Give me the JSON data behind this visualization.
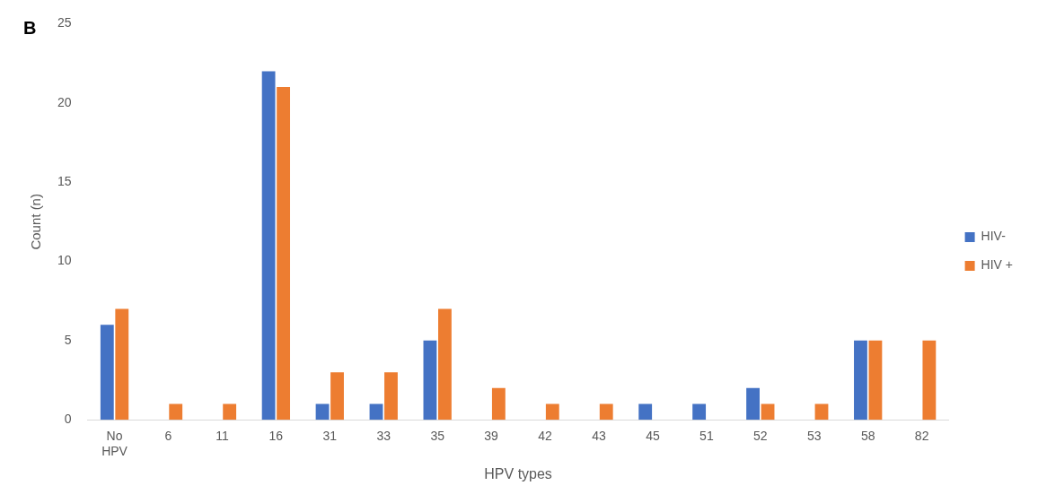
{
  "chart_data": {
    "type": "bar",
    "categories": [
      "No HPV",
      "6",
      "11",
      "16",
      "31",
      "33",
      "35",
      "39",
      "42",
      "43",
      "45",
      "51",
      "52",
      "53",
      "58",
      "82"
    ],
    "series": [
      {
        "name": "HIV-",
        "color": "#4472c4",
        "values": [
          6,
          0,
          0,
          22,
          1,
          1,
          5,
          0,
          0,
          0,
          1,
          1,
          2,
          0,
          5,
          0
        ]
      },
      {
        "name": "HIV +",
        "color": "#ed7d31",
        "values": [
          7,
          1,
          1,
          21,
          3,
          3,
          7,
          2,
          1,
          1,
          0,
          0,
          1,
          1,
          5,
          5
        ]
      }
    ],
    "xlabel": "HPV types",
    "ylabel": "Count (n)",
    "ylim": [
      0,
      25
    ],
    "yticks": [
      0,
      5,
      10,
      15,
      20,
      25
    ],
    "grid": false,
    "legend": "right",
    "annotations": [
      "B"
    ]
  }
}
